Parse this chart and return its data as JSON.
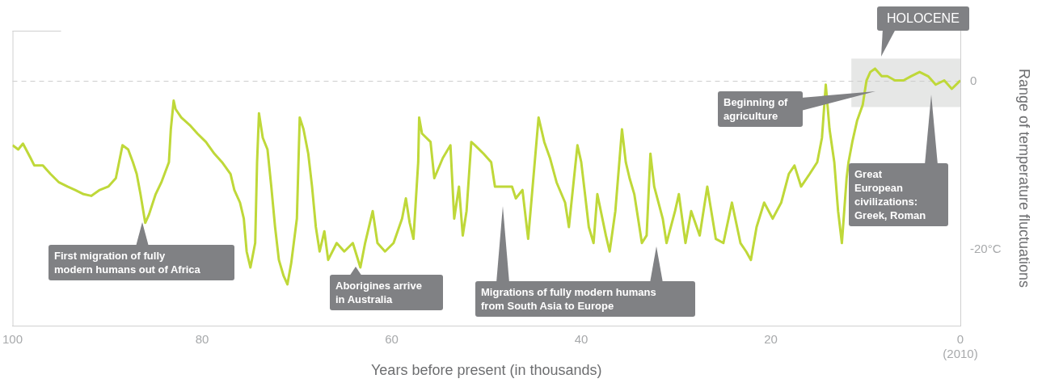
{
  "chart_data": {
    "type": "line",
    "xlabel": "Years before present (in thousands)",
    "ylabel": "Range of temperature fluctuations",
    "xlim": [
      100,
      0
    ],
    "xticks": [
      100,
      80,
      60,
      40,
      20,
      {
        "value": 0,
        "label": "0\n(2010)"
      }
    ],
    "ylim": [
      -29,
      6
    ],
    "yticks": [
      0,
      {
        "value": -20,
        "label": "-20°C"
      }
    ],
    "grid": false,
    "legend": false,
    "marker": "none",
    "line_style": "solid",
    "ref_lines": [
      {
        "axis": "y",
        "value": 0,
        "color": "#cccccc",
        "line_style": "dashed"
      }
    ],
    "bands": [
      {
        "axis": "x",
        "from": 11.5,
        "to": 0,
        "label": "HOLOCENE",
        "color": "#e6e7e6"
      }
    ],
    "annotations": [
      "First migration of fully\nmodern humans out of Africa",
      "Aborigines arrive\nin Australia",
      "Migrations of fully modern humans\nfrom South Asia to Europe",
      "Beginning of\nagriculture",
      "Great\nEuropean\ncivilizations:\nGreek, Roman"
    ],
    "series": [
      {
        "color": "#bfd839",
        "x": [
          100.0,
          99.4,
          98.9,
          98.1,
          97.7,
          96.8,
          96.0,
          95.1,
          94.2,
          93.4,
          92.5,
          91.7,
          90.8,
          89.9,
          89.1,
          88.4,
          87.8,
          87.3,
          86.9,
          86.5,
          86.0,
          85.6,
          84.9,
          84.3,
          83.5,
          83.3,
          83.0,
          82.8,
          82.2,
          81.3,
          80.5,
          79.6,
          78.7,
          77.9,
          77.0,
          76.6,
          76.0,
          75.6,
          75.3,
          74.9,
          74.4,
          74.2,
          74.0,
          73.6,
          73.1,
          72.7,
          72.3,
          71.9,
          71.4,
          71.0,
          70.6,
          70.0,
          69.7,
          69.3,
          68.8,
          68.4,
          68.0,
          67.6,
          67.1,
          66.7,
          65.8,
          65.0,
          64.1,
          63.3,
          62.8,
          62.0,
          61.5,
          60.7,
          59.8,
          58.9,
          58.5,
          58.1,
          57.7,
          57.2,
          57.1,
          56.8,
          55.9,
          55.5,
          54.6,
          53.8,
          53.4,
          52.9,
          52.5,
          52.1,
          51.6,
          51.2,
          50.3,
          49.5,
          49.1,
          48.2,
          47.3,
          46.9,
          46.2,
          45.6,
          44.5,
          43.9,
          43.3,
          42.6,
          41.7,
          41.3,
          40.4,
          40.0,
          39.6,
          39.2,
          38.7,
          38.3,
          37.4,
          37.0,
          36.4,
          35.7,
          35.3,
          34.9,
          34.4,
          34.0,
          33.6,
          33.1,
          32.7,
          32.3,
          31.4,
          31.0,
          30.1,
          29.7,
          29.0,
          28.4,
          27.5,
          26.7,
          25.8,
          25.0,
          24.1,
          23.2,
          22.6,
          22.1,
          21.5,
          20.7,
          19.8,
          18.9,
          18.1,
          17.5,
          16.8,
          15.9,
          15.1,
          14.6,
          14.2,
          13.8,
          13.3,
          12.9,
          12.5,
          12.0,
          11.8,
          11.4,
          10.9,
          10.3,
          9.9,
          9.5,
          9.0,
          8.3,
          7.7,
          6.9,
          6.0,
          5.2,
          4.3,
          3.4,
          2.6,
          1.7,
          0.9,
          0.0
        ],
        "values": [
          -7.6,
          -8.1,
          -7.4,
          -9.1,
          -10.0,
          -10.0,
          -11.0,
          -12.0,
          -12.5,
          -12.9,
          -13.4,
          -13.6,
          -12.9,
          -12.5,
          -11.5,
          -7.6,
          -8.1,
          -9.6,
          -11.0,
          -13.4,
          -16.8,
          -15.8,
          -13.4,
          -12.0,
          -9.6,
          -5.7,
          -2.3,
          -3.3,
          -4.3,
          -5.2,
          -6.2,
          -7.2,
          -8.6,
          -9.6,
          -11.0,
          -12.9,
          -14.4,
          -16.3,
          -20.2,
          -22.1,
          -19.2,
          -9.6,
          -3.8,
          -6.7,
          -8.1,
          -12.5,
          -17.3,
          -21.2,
          -23.1,
          -24.1,
          -21.6,
          -16.3,
          -4.3,
          -5.7,
          -8.6,
          -12.5,
          -17.3,
          -20.2,
          -17.8,
          -21.2,
          -19.2,
          -20.2,
          -19.2,
          -22.1,
          -19.2,
          -15.4,
          -19.2,
          -20.2,
          -19.2,
          -16.3,
          -13.9,
          -16.8,
          -18.7,
          -9.6,
          -4.3,
          -6.2,
          -7.2,
          -11.5,
          -9.1,
          -7.6,
          -16.3,
          -12.5,
          -18.3,
          -15.4,
          -7.2,
          -7.6,
          -8.6,
          -9.6,
          -12.5,
          -12.5,
          -12.5,
          -13.9,
          -12.9,
          -18.7,
          -4.3,
          -7.2,
          -9.1,
          -12.0,
          -14.4,
          -17.3,
          -7.6,
          -9.6,
          -13.4,
          -17.3,
          -19.2,
          -13.4,
          -18.3,
          -20.2,
          -15.4,
          -5.7,
          -9.6,
          -11.5,
          -13.4,
          -16.3,
          -19.2,
          -18.3,
          -8.6,
          -12.5,
          -16.3,
          -19.2,
          -15.4,
          -13.4,
          -19.2,
          -15.4,
          -18.3,
          -12.5,
          -18.7,
          -19.2,
          -14.4,
          -19.2,
          -20.2,
          -21.2,
          -17.3,
          -14.4,
          -16.3,
          -14.4,
          -11.0,
          -10.0,
          -12.5,
          -11.0,
          -9.6,
          -6.7,
          -0.4,
          -5.7,
          -9.6,
          -15.4,
          -19.2,
          -11.5,
          -9.6,
          -7.2,
          -4.7,
          -2.8,
          0.1,
          1.1,
          1.5,
          0.6,
          0.6,
          0.1,
          0.1,
          0.6,
          1.1,
          0.6,
          -0.4,
          0.1,
          -0.9,
          0.1
        ]
      }
    ]
  }
}
